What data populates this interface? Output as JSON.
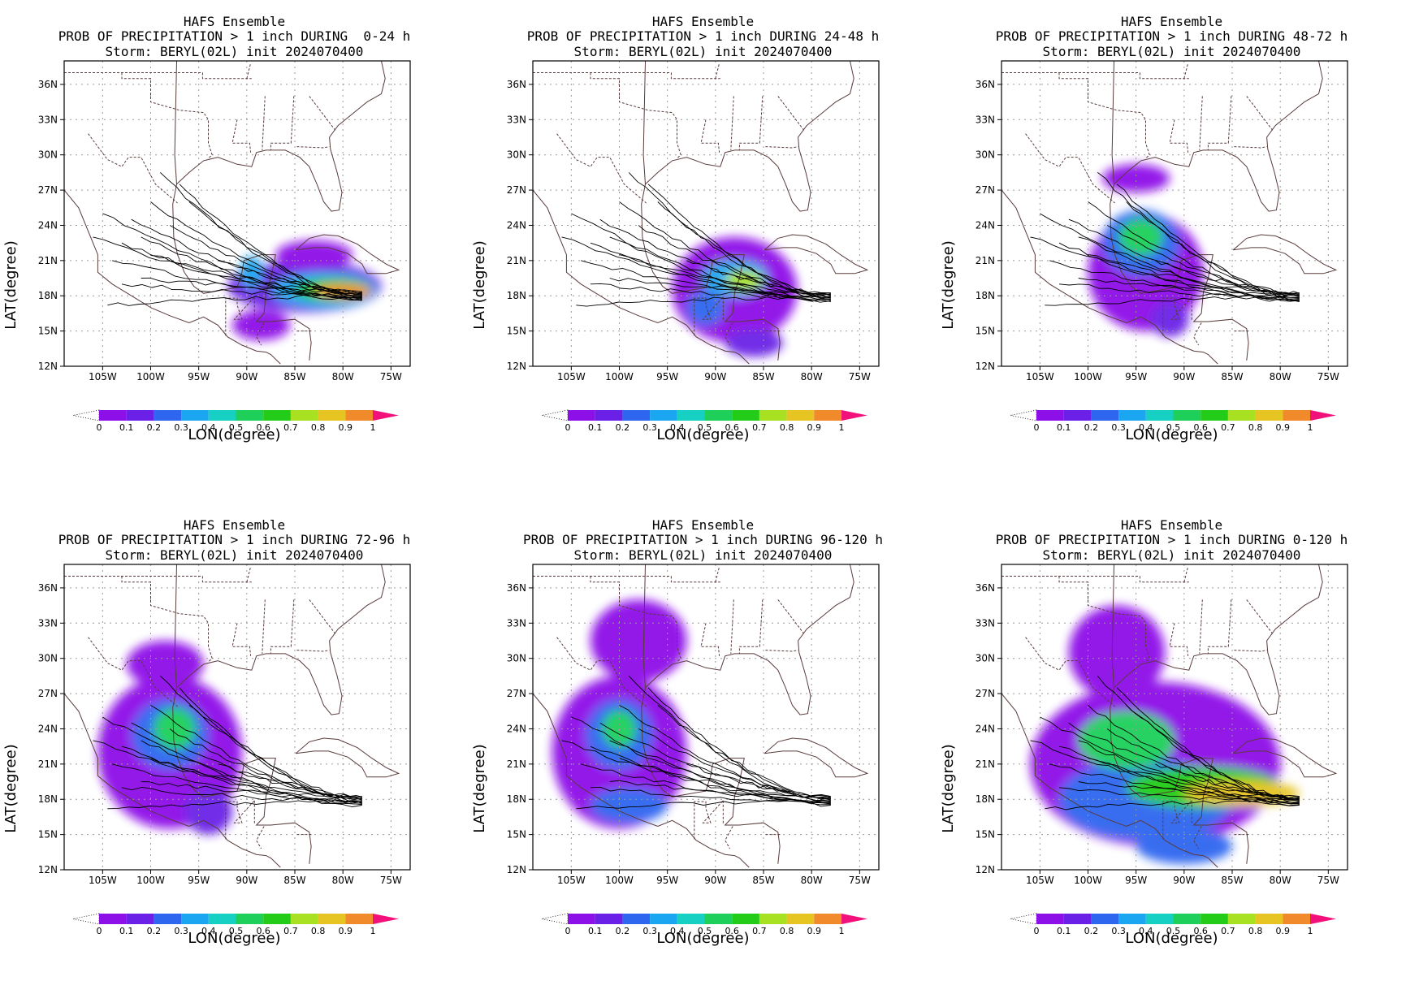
{
  "colors": {
    "border": "#5a3b3b",
    "grid": "#9a9a9a",
    "track": "#000000",
    "colorbar": [
      "#8e10e8",
      "#6a20e6",
      "#2f66f0",
      "#1aa6f0",
      "#16d0c4",
      "#1ed05a",
      "#23cc18",
      "#a8e022",
      "#e6c422",
      "#f08a2a",
      "#f0443a",
      "#f2107a"
    ]
  },
  "icons": {
    "colorbar_left_arrow": "dotted-triangle-icon",
    "colorbar_right_arrow": "magenta-triangle-icon"
  },
  "chart_data": [
    {
      "type": "heatmap",
      "title_line1": "HAFS Ensemble",
      "title_line2": "PROB OF PRECIPITATION > 1 inch DURING  0-24 h",
      "title_line3": "Storm: BERYL(02L) init 2024070400",
      "xlabel": "LON(degree)",
      "ylabel": "LAT(degree)",
      "xlim": [
        -109,
        -73
      ],
      "ylim": [
        12,
        38
      ],
      "xticks": [
        -105,
        -100,
        -95,
        -90,
        -85,
        -80,
        -75
      ],
      "xtick_labels": [
        "105W",
        "100W",
        "95W",
        "90W",
        "85W",
        "80W",
        "75W"
      ],
      "yticks": [
        12,
        15,
        18,
        21,
        24,
        27,
        30,
        33,
        36
      ],
      "ytick_labels": [
        "12N",
        "15N",
        "18N",
        "21N",
        "24N",
        "27N",
        "30N",
        "33N",
        "36N"
      ],
      "grid": true,
      "colorbar_levels": [
        "0",
        "0.1",
        "0.2",
        "0.3",
        "0.4",
        "0.5",
        "0.6",
        "0.7",
        "0.8",
        "0.9",
        "1"
      ],
      "blobs": [
        {
          "lon": -84,
          "lat": 18.8,
          "rx": 8,
          "ry": 2.2,
          "prob": 0.15
        },
        {
          "lon": -83,
          "lat": 21.5,
          "rx": 4,
          "ry": 1.2,
          "prob": 0.05
        },
        {
          "lon": -88.5,
          "lat": 15.5,
          "rx": 3,
          "ry": 1.3,
          "prob": 0.05
        },
        {
          "lon": -82,
          "lat": 18.5,
          "rx": 5.5,
          "ry": 1.5,
          "prob": 0.35
        },
        {
          "lon": -81,
          "lat": 18.5,
          "rx": 4,
          "ry": 1.0,
          "prob": 0.65
        },
        {
          "lon": -80,
          "lat": 18.4,
          "rx": 3,
          "ry": 0.6,
          "prob": 0.9
        },
        {
          "lon": -89.5,
          "lat": 20,
          "rx": 1.2,
          "ry": 1.4,
          "prob": 0.3
        }
      ],
      "track_start": [
        -78,
        18.0
      ],
      "track_ends": [
        [
          -103,
          22.5
        ],
        [
          -105,
          25
        ],
        [
          -101,
          23
        ],
        [
          -99,
          28.5
        ],
        [
          -104,
          21
        ],
        [
          -106,
          23
        ],
        [
          -97,
          27.5
        ],
        [
          -103,
          19
        ],
        [
          -104.5,
          17.2
        ],
        [
          -100,
          26
        ],
        [
          -96,
          26
        ],
        [
          -102,
          24.5
        ],
        [
          -98,
          24
        ],
        [
          -100,
          21.5
        ],
        [
          -93,
          21
        ],
        [
          -101,
          19.5
        ]
      ]
    },
    {
      "type": "heatmap",
      "title_line1": "HAFS Ensemble",
      "title_line2": "PROB OF PRECIPITATION > 1 inch DURING 24-48 h",
      "title_line3": "Storm: BERYL(02L) init 2024070400",
      "xlabel": "LON(degree)",
      "ylabel": "LAT(degree)",
      "xlim": [
        -109,
        -73
      ],
      "ylim": [
        12,
        38
      ],
      "xticks": [
        -105,
        -100,
        -95,
        -90,
        -85,
        -80,
        -75
      ],
      "xtick_labels": [
        "105W",
        "100W",
        "95W",
        "90W",
        "85W",
        "80W",
        "75W"
      ],
      "yticks": [
        12,
        15,
        18,
        21,
        24,
        27,
        30,
        33,
        36
      ],
      "ytick_labels": [
        "12N",
        "15N",
        "18N",
        "21N",
        "24N",
        "27N",
        "30N",
        "33N",
        "36N"
      ],
      "grid": true,
      "colorbar_levels": [
        "0",
        "0.1",
        "0.2",
        "0.3",
        "0.4",
        "0.5",
        "0.6",
        "0.7",
        "0.8",
        "0.9",
        "1"
      ],
      "blobs": [
        {
          "lon": -88,
          "lat": 18.5,
          "rx": 6.5,
          "ry": 4.5,
          "prob": 0.08
        },
        {
          "lon": -86,
          "lat": 14,
          "rx": 3,
          "ry": 1.2,
          "prob": 0.1
        },
        {
          "lon": -88,
          "lat": 19.5,
          "rx": 3.5,
          "ry": 1.6,
          "prob": 0.35
        },
        {
          "lon": -87,
          "lat": 19.3,
          "rx": 2,
          "ry": 0.9,
          "prob": 0.75
        },
        {
          "lon": -91,
          "lat": 17,
          "rx": 2,
          "ry": 1.5,
          "prob": 0.2
        }
      ],
      "track_start": [
        -78,
        17.9
      ],
      "track_ends": [
        [
          -103,
          22.5
        ],
        [
          -105,
          25
        ],
        [
          -101,
          23
        ],
        [
          -99,
          28.5
        ],
        [
          -104,
          21
        ],
        [
          -106,
          23
        ],
        [
          -97,
          27.5
        ],
        [
          -103,
          19
        ],
        [
          -104.5,
          17.2
        ],
        [
          -100,
          26
        ],
        [
          -96,
          26
        ],
        [
          -102,
          24.5
        ],
        [
          -98,
          24
        ],
        [
          -100,
          21.5
        ],
        [
          -93,
          21
        ],
        [
          -101,
          19.5
        ]
      ]
    },
    {
      "type": "heatmap",
      "title_line1": "HAFS Ensemble",
      "title_line2": "PROB OF PRECIPITATION > 1 inch DURING 48-72 h",
      "title_line3": "Storm: BERYL(02L) init 2024070400",
      "xlabel": "LON(degree)",
      "ylabel": "LAT(degree)",
      "xlim": [
        -109,
        -73
      ],
      "ylim": [
        12,
        38
      ],
      "xticks": [
        -105,
        -100,
        -95,
        -90,
        -85,
        -80,
        -75
      ],
      "xtick_labels": [
        "105W",
        "100W",
        "95W",
        "90W",
        "85W",
        "80W",
        "75W"
      ],
      "yticks": [
        12,
        15,
        18,
        21,
        24,
        27,
        30,
        33,
        36
      ],
      "ytick_labels": [
        "12N",
        "15N",
        "18N",
        "21N",
        "24N",
        "27N",
        "30N",
        "33N",
        "36N"
      ],
      "grid": true,
      "colorbar_levels": [
        "0",
        "0.1",
        "0.2",
        "0.3",
        "0.4",
        "0.5",
        "0.6",
        "0.7",
        "0.8",
        "0.9",
        "1"
      ],
      "blobs": [
        {
          "lon": -94,
          "lat": 20,
          "rx": 6,
          "ry": 5,
          "prob": 0.08
        },
        {
          "lon": -95,
          "lat": 28,
          "rx": 3.5,
          "ry": 1.2,
          "prob": 0.06
        },
        {
          "lon": -94.5,
          "lat": 22.5,
          "rx": 4,
          "ry": 2.8,
          "prob": 0.25
        },
        {
          "lon": -94.5,
          "lat": 23,
          "rx": 2.3,
          "ry": 1.6,
          "prob": 0.5
        },
        {
          "lon": -91.5,
          "lat": 16,
          "rx": 2,
          "ry": 1.5,
          "prob": 0.15
        }
      ],
      "track_start": [
        -78,
        17.9
      ],
      "track_ends": [
        [
          -103,
          22.5
        ],
        [
          -105,
          25
        ],
        [
          -101,
          23
        ],
        [
          -99,
          28.5
        ],
        [
          -104,
          21
        ],
        [
          -106,
          23
        ],
        [
          -97,
          27.5
        ],
        [
          -103,
          19
        ],
        [
          -104.5,
          17.2
        ],
        [
          -100,
          26
        ],
        [
          -96,
          26
        ],
        [
          -102,
          24.5
        ],
        [
          -98,
          24
        ],
        [
          -100,
          21.5
        ],
        [
          -93,
          21
        ],
        [
          -101,
          19.5
        ]
      ]
    },
    {
      "type": "heatmap",
      "title_line1": "HAFS Ensemble",
      "title_line2": "PROB OF PRECIPITATION > 1 inch DURING 72-96 h",
      "title_line3": "Storm: BERYL(02L) init 2024070400",
      "xlabel": "LON(degree)",
      "ylabel": "LAT(degree)",
      "xlim": [
        -109,
        -73
      ],
      "ylim": [
        12,
        38
      ],
      "xticks": [
        -105,
        -100,
        -95,
        -90,
        -85,
        -80,
        -75
      ],
      "xtick_labels": [
        "105W",
        "100W",
        "95W",
        "90W",
        "85W",
        "80W",
        "75W"
      ],
      "yticks": [
        12,
        15,
        18,
        21,
        24,
        27,
        30,
        33,
        36
      ],
      "ytick_labels": [
        "12N",
        "15N",
        "18N",
        "21N",
        "24N",
        "27N",
        "30N",
        "33N",
        "36N"
      ],
      "grid": true,
      "colorbar_levels": [
        "0",
        "0.1",
        "0.2",
        "0.3",
        "0.4",
        "0.5",
        "0.6",
        "0.7",
        "0.8",
        "0.9",
        "1"
      ],
      "blobs": [
        {
          "lon": -98,
          "lat": 22,
          "rx": 7.5,
          "ry": 6.5,
          "prob": 0.08
        },
        {
          "lon": -98.5,
          "lat": 29.5,
          "rx": 4,
          "ry": 2,
          "prob": 0.06
        },
        {
          "lon": -98,
          "lat": 23.5,
          "rx": 4,
          "ry": 3,
          "prob": 0.25
        },
        {
          "lon": -97.5,
          "lat": 24,
          "rx": 2.2,
          "ry": 1.8,
          "prob": 0.55
        },
        {
          "lon": -94,
          "lat": 17,
          "rx": 2.5,
          "ry": 2,
          "prob": 0.15
        }
      ],
      "track_start": [
        -78,
        17.9
      ],
      "track_ends": [
        [
          -103,
          22.5
        ],
        [
          -105,
          25
        ],
        [
          -101,
          23
        ],
        [
          -99,
          28.5
        ],
        [
          -104,
          21
        ],
        [
          -106,
          23
        ],
        [
          -97,
          27.5
        ],
        [
          -103,
          19
        ],
        [
          -104.5,
          17.2
        ],
        [
          -100,
          26
        ],
        [
          -96,
          26
        ],
        [
          -102,
          24.5
        ],
        [
          -98,
          24
        ],
        [
          -100,
          21.5
        ],
        [
          -93,
          21
        ],
        [
          -101,
          19.5
        ]
      ]
    },
    {
      "type": "heatmap",
      "title_line1": "HAFS Ensemble",
      "title_line2": "PROB OF PRECIPITATION > 1 inch DURING 96-120 h",
      "title_line3": "Storm: BERYL(02L) init 2024070400",
      "xlabel": "LON(degree)",
      "ylabel": "LAT(degree)",
      "xlim": [
        -109,
        -73
      ],
      "ylim": [
        12,
        38
      ],
      "xticks": [
        -105,
        -100,
        -95,
        -90,
        -85,
        -80,
        -75
      ],
      "xtick_labels": [
        "105W",
        "100W",
        "95W",
        "90W",
        "85W",
        "80W",
        "75W"
      ],
      "yticks": [
        12,
        15,
        18,
        21,
        24,
        27,
        30,
        33,
        36
      ],
      "ytick_labels": [
        "12N",
        "15N",
        "18N",
        "21N",
        "24N",
        "27N",
        "30N",
        "33N",
        "36N"
      ],
      "grid": true,
      "colorbar_levels": [
        "0",
        "0.1",
        "0.2",
        "0.3",
        "0.4",
        "0.5",
        "0.6",
        "0.7",
        "0.8",
        "0.9",
        "1"
      ],
      "blobs": [
        {
          "lon": -100,
          "lat": 22,
          "rx": 7,
          "ry": 6.5,
          "prob": 0.08
        },
        {
          "lon": -98,
          "lat": 31.5,
          "rx": 5,
          "ry": 3.5,
          "prob": 0.06
        },
        {
          "lon": -100,
          "lat": 23.5,
          "rx": 3.5,
          "ry": 3,
          "prob": 0.25
        },
        {
          "lon": -100,
          "lat": 24,
          "rx": 1.8,
          "ry": 1.6,
          "prob": 0.5
        },
        {
          "lon": -99,
          "lat": 17.5,
          "rx": 4,
          "ry": 1.5,
          "prob": 0.2
        }
      ],
      "track_start": [
        -78,
        17.9
      ],
      "track_ends": [
        [
          -103,
          22.5
        ],
        [
          -105,
          25
        ],
        [
          -101,
          23
        ],
        [
          -99,
          28.5
        ],
        [
          -104,
          21
        ],
        [
          -106,
          23
        ],
        [
          -97,
          27.5
        ],
        [
          -103,
          19
        ],
        [
          -104.5,
          17.2
        ],
        [
          -100,
          26
        ],
        [
          -96,
          26
        ],
        [
          -102,
          24.5
        ],
        [
          -98,
          24
        ],
        [
          -100,
          21.5
        ],
        [
          -93,
          21
        ],
        [
          -101,
          19.5
        ]
      ]
    },
    {
      "type": "heatmap",
      "title_line1": "HAFS Ensemble",
      "title_line2": "PROB OF PRECIPITATION > 1 inch DURING 0-120 h",
      "title_line3": "Storm: BERYL(02L) init 2024070400",
      "xlabel": "LON(degree)",
      "ylabel": "LAT(degree)",
      "xlim": [
        -109,
        -73
      ],
      "ylim": [
        12,
        38
      ],
      "xticks": [
        -105,
        -100,
        -95,
        -90,
        -85,
        -80,
        -75
      ],
      "xtick_labels": [
        "105W",
        "100W",
        "95W",
        "90W",
        "85W",
        "80W",
        "75W"
      ],
      "yticks": [
        12,
        15,
        18,
        21,
        24,
        27,
        30,
        33,
        36
      ],
      "ytick_labels": [
        "12N",
        "15N",
        "18N",
        "21N",
        "24N",
        "27N",
        "30N",
        "33N",
        "36N"
      ],
      "grid": true,
      "colorbar_levels": [
        "0",
        "0.1",
        "0.2",
        "0.3",
        "0.4",
        "0.5",
        "0.6",
        "0.7",
        "0.8",
        "0.9",
        "1"
      ],
      "blobs": [
        {
          "lon": -93,
          "lat": 21,
          "rx": 13,
          "ry": 7,
          "prob": 0.08
        },
        {
          "lon": -97,
          "lat": 30.5,
          "rx": 5,
          "ry": 4,
          "prob": 0.06
        },
        {
          "lon": -94,
          "lat": 18,
          "rx": 9,
          "ry": 3.5,
          "prob": 0.25
        },
        {
          "lon": -96,
          "lat": 23,
          "rx": 5,
          "ry": 2.5,
          "prob": 0.5
        },
        {
          "lon": -88,
          "lat": 19,
          "rx": 8,
          "ry": 1.8,
          "prob": 0.6
        },
        {
          "lon": -84,
          "lat": 18.5,
          "rx": 6,
          "ry": 1.1,
          "prob": 0.85
        },
        {
          "lon": -90,
          "lat": 14,
          "rx": 5,
          "ry": 1.5,
          "prob": 0.2
        }
      ],
      "track_start": [
        -78,
        17.9
      ],
      "track_ends": [
        [
          -103,
          22.5
        ],
        [
          -105,
          25
        ],
        [
          -101,
          23
        ],
        [
          -99,
          28.5
        ],
        [
          -104,
          21
        ],
        [
          -106,
          23
        ],
        [
          -97,
          27.5
        ],
        [
          -103,
          19
        ],
        [
          -104.5,
          17.2
        ],
        [
          -100,
          26
        ],
        [
          -96,
          26
        ],
        [
          -102,
          24.5
        ],
        [
          -98,
          24
        ],
        [
          -100,
          21.5
        ],
        [
          -93,
          21
        ],
        [
          -101,
          19.5
        ]
      ]
    }
  ]
}
